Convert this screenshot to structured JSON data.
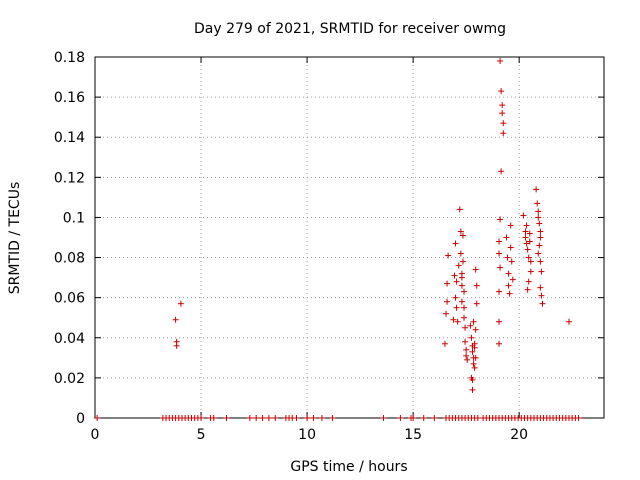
{
  "chart_data": {
    "type": "scatter",
    "title": "Day 279 of 2021, SRMTID for receiver owmg",
    "xlabel": "GPS time / hours",
    "ylabel": "SRMTID / TECUs",
    "xlim": [
      0,
      24
    ],
    "ylim": [
      0,
      0.18
    ],
    "x_ticks": [
      0,
      5,
      10,
      15,
      20
    ],
    "x_tick_labels": [
      "0",
      "5",
      "10",
      "15",
      "20"
    ],
    "y_ticks": [
      0,
      0.02,
      0.04,
      0.06,
      0.08,
      0.1,
      0.12,
      0.14,
      0.16,
      0.18
    ],
    "y_tick_labels": [
      "0",
      "0.02",
      "0.04",
      "0.06",
      "0.08",
      "0.1",
      "0.12",
      "0.14",
      "0.16",
      "0.18"
    ],
    "grid": true,
    "marker": "+",
    "marker_color": "#cc0000",
    "series": [
      {
        "name": "SRMTID",
        "points": [
          [
            0.1,
            0
          ],
          [
            3.2,
            0
          ],
          [
            3.35,
            0
          ],
          [
            3.5,
            0
          ],
          [
            3.65,
            0
          ],
          [
            3.8,
            0
          ],
          [
            3.95,
            0
          ],
          [
            4.1,
            0
          ],
          [
            4.25,
            0
          ],
          [
            4.4,
            0
          ],
          [
            4.55,
            0
          ],
          [
            4.7,
            0
          ],
          [
            4.85,
            0
          ],
          [
            5.0,
            0
          ],
          [
            5.45,
            0
          ],
          [
            5.6,
            0
          ],
          [
            6.2,
            0
          ],
          [
            7.3,
            0
          ],
          [
            7.6,
            0
          ],
          [
            7.9,
            0
          ],
          [
            8.2,
            0
          ],
          [
            8.5,
            0
          ],
          [
            9.0,
            0
          ],
          [
            9.15,
            0
          ],
          [
            9.3,
            0
          ],
          [
            9.5,
            0
          ],
          [
            10.0,
            0
          ],
          [
            10.3,
            0
          ],
          [
            10.7,
            0
          ],
          [
            11.2,
            0
          ],
          [
            13.6,
            0
          ],
          [
            14.4,
            0
          ],
          [
            14.9,
            0
          ],
          [
            15.0,
            0
          ],
          [
            15.5,
            0
          ],
          [
            16.0,
            0
          ],
          [
            16.55,
            0
          ],
          [
            16.7,
            0
          ],
          [
            16.85,
            0
          ],
          [
            17.0,
            0
          ],
          [
            17.15,
            0
          ],
          [
            17.3,
            0
          ],
          [
            17.45,
            0
          ],
          [
            17.6,
            0
          ],
          [
            17.75,
            0
          ],
          [
            17.9,
            0
          ],
          [
            18.05,
            0
          ],
          [
            18.3,
            0
          ],
          [
            18.45,
            0
          ],
          [
            18.6,
            0
          ],
          [
            18.75,
            0
          ],
          [
            18.9,
            0
          ],
          [
            19.05,
            0
          ],
          [
            19.2,
            0
          ],
          [
            19.35,
            0
          ],
          [
            19.5,
            0
          ],
          [
            19.65,
            0
          ],
          [
            19.8,
            0
          ],
          [
            19.95,
            0
          ],
          [
            20.1,
            0
          ],
          [
            20.25,
            0
          ],
          [
            20.4,
            0
          ],
          [
            20.55,
            0
          ],
          [
            20.7,
            0
          ],
          [
            20.85,
            0
          ],
          [
            21.0,
            0
          ],
          [
            21.15,
            0
          ],
          [
            21.3,
            0
          ],
          [
            21.45,
            0
          ],
          [
            21.6,
            0
          ],
          [
            21.75,
            0
          ],
          [
            21.9,
            0
          ],
          [
            22.05,
            0
          ],
          [
            22.2,
            0
          ],
          [
            22.35,
            0
          ],
          [
            22.5,
            0
          ],
          [
            22.65,
            0
          ],
          [
            22.8,
            0
          ],
          [
            3.8,
            0.049
          ],
          [
            3.85,
            0.038
          ],
          [
            3.85,
            0.036
          ],
          [
            4.05,
            0.057
          ],
          [
            16.5,
            0.037
          ],
          [
            16.55,
            0.052
          ],
          [
            16.6,
            0.058
          ],
          [
            16.6,
            0.067
          ],
          [
            16.65,
            0.081
          ],
          [
            16.9,
            0.049
          ],
          [
            16.95,
            0.071
          ],
          [
            17.0,
            0.06
          ],
          [
            17.0,
            0.087
          ],
          [
            17.05,
            0.055
          ],
          [
            17.05,
            0.068
          ],
          [
            17.1,
            0.048
          ],
          [
            17.15,
            0.076
          ],
          [
            17.2,
            0.104
          ],
          [
            17.25,
            0.093
          ],
          [
            17.25,
            0.082
          ],
          [
            17.3,
            0.072
          ],
          [
            17.3,
            0.066
          ],
          [
            17.3,
            0.058
          ],
          [
            17.35,
            0.091
          ],
          [
            17.35,
            0.078
          ],
          [
            17.4,
            0.063
          ],
          [
            17.4,
            0.05
          ],
          [
            17.45,
            0.045
          ],
          [
            17.45,
            0.038
          ],
          [
            17.5,
            0.034
          ],
          [
            17.5,
            0.031
          ],
          [
            17.55,
            0.029
          ],
          [
            17.3,
            0.07
          ],
          [
            17.4,
            0.055
          ],
          [
            17.7,
            0.046
          ],
          [
            17.75,
            0.04
          ],
          [
            17.8,
            0.036
          ],
          [
            17.8,
            0.033
          ],
          [
            17.85,
            0.03
          ],
          [
            17.85,
            0.027
          ],
          [
            17.9,
            0.037
          ],
          [
            17.9,
            0.025
          ],
          [
            17.75,
            0.02
          ],
          [
            17.8,
            0.019
          ],
          [
            17.8,
            0.014
          ],
          [
            17.95,
            0.074
          ],
          [
            18.0,
            0.066
          ],
          [
            18.0,
            0.057
          ],
          [
            17.85,
            0.048
          ],
          [
            17.95,
            0.044
          ],
          [
            17.9,
            0.035
          ],
          [
            17.95,
            0.03
          ],
          [
            19.1,
            0.178
          ],
          [
            19.15,
            0.163
          ],
          [
            19.2,
            0.156
          ],
          [
            19.2,
            0.152
          ],
          [
            19.25,
            0.147
          ],
          [
            19.25,
            0.142
          ],
          [
            19.15,
            0.123
          ],
          [
            19.1,
            0.099
          ],
          [
            19.05,
            0.088
          ],
          [
            19.05,
            0.082
          ],
          [
            19.1,
            0.075
          ],
          [
            19.05,
            0.063
          ],
          [
            19.05,
            0.048
          ],
          [
            19.05,
            0.037
          ],
          [
            19.4,
            0.09
          ],
          [
            19.45,
            0.08
          ],
          [
            19.5,
            0.072
          ],
          [
            19.5,
            0.066
          ],
          [
            19.55,
            0.062
          ],
          [
            19.6,
            0.096
          ],
          [
            19.6,
            0.085
          ],
          [
            19.65,
            0.078
          ],
          [
            19.7,
            0.069
          ],
          [
            20.2,
            0.101
          ],
          [
            20.3,
            0.093
          ],
          [
            20.3,
            0.09
          ],
          [
            20.35,
            0.087
          ],
          [
            20.4,
            0.084
          ],
          [
            20.45,
            0.08
          ],
          [
            20.5,
            0.092
          ],
          [
            20.55,
            0.078
          ],
          [
            20.55,
            0.073
          ],
          [
            20.45,
            0.068
          ],
          [
            20.4,
            0.064
          ],
          [
            20.35,
            0.096
          ],
          [
            20.5,
            0.088
          ],
          [
            20.8,
            0.114
          ],
          [
            20.85,
            0.107
          ],
          [
            20.9,
            0.103
          ],
          [
            20.9,
            0.1
          ],
          [
            20.95,
            0.097
          ],
          [
            21.0,
            0.093
          ],
          [
            21.0,
            0.09
          ],
          [
            20.95,
            0.086
          ],
          [
            20.9,
            0.082
          ],
          [
            21.0,
            0.078
          ],
          [
            21.05,
            0.073
          ],
          [
            21.0,
            0.065
          ],
          [
            21.05,
            0.061
          ],
          [
            21.1,
            0.057
          ],
          [
            22.35,
            0.048
          ]
        ]
      }
    ]
  }
}
